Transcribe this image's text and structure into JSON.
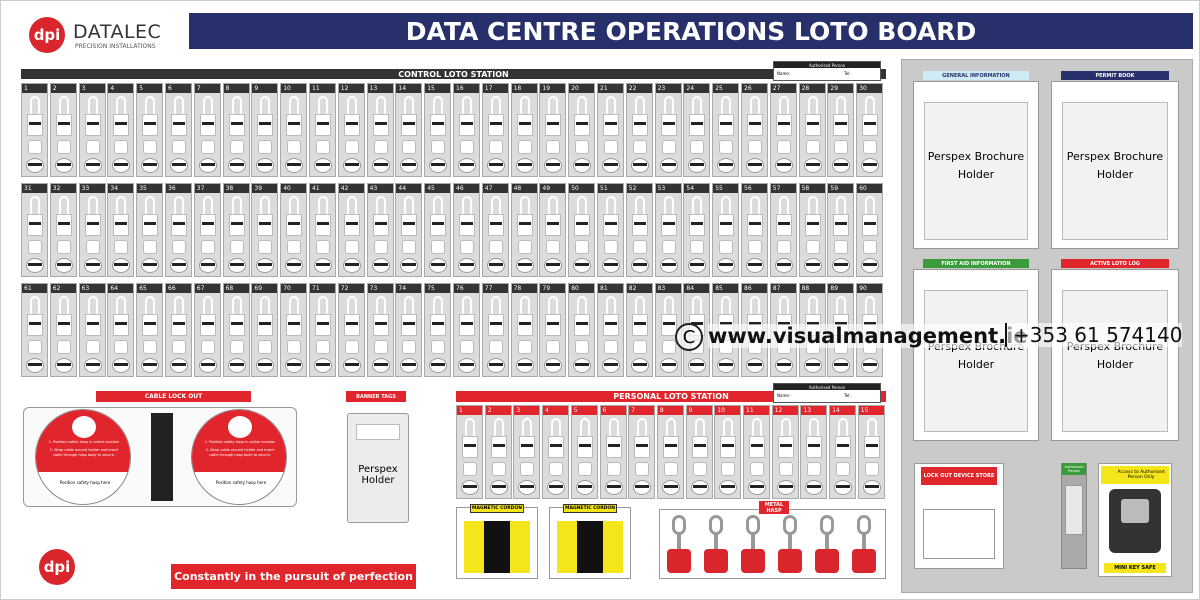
{
  "logo": {
    "mark": "dpi",
    "name": "DATALEC",
    "tagline": "PRECISION INSTALLATIONS"
  },
  "title": "DATA CENTRE OPERATIONS LOTO BOARD",
  "control_station": {
    "title": "CONTROL LOTO STATION",
    "authorised_label": "Authorised Person",
    "name_label": "Name:",
    "tel_label": "Tel:",
    "slots": [
      1,
      2,
      3,
      4,
      5,
      6,
      7,
      8,
      9,
      10,
      11,
      12,
      13,
      14,
      15,
      16,
      17,
      18,
      19,
      20,
      21,
      22,
      23,
      24,
      25,
      26,
      27,
      28,
      29,
      30,
      31,
      32,
      33,
      34,
      35,
      36,
      37,
      38,
      39,
      40,
      41,
      42,
      43,
      44,
      45,
      46,
      47,
      48,
      49,
      50,
      51,
      52,
      53,
      54,
      55,
      56,
      57,
      58,
      59,
      60,
      61,
      62,
      63,
      64,
      65,
      66,
      67,
      68,
      69,
      70,
      71,
      72,
      73,
      74,
      75,
      76,
      77,
      78,
      79,
      80,
      81,
      82,
      83,
      84,
      85,
      86,
      87,
      88,
      89,
      90
    ]
  },
  "cable_lockout": {
    "title": "CABLE LOCK OUT",
    "instructions": [
      "1. Position safety hasp in active location",
      "2. Wrap cable around holder and insert cable through hasp body to secure."
    ],
    "hasp_label": "Position safety hasp here"
  },
  "banner_tags": {
    "title": "BANNER TAGS",
    "holder": "Perspex Holder"
  },
  "personal_station": {
    "title": "PERSONAL LOTO STATION",
    "authorised_label": "Authorised Person",
    "name_label": "Name:",
    "tel_label": "Tel:",
    "slots": [
      1,
      2,
      3,
      4,
      5,
      6,
      7,
      8,
      9,
      10,
      11,
      12,
      13,
      14,
      15
    ]
  },
  "cordons": [
    "MAGNETIC CORDON",
    "MAGNETIC CORDON"
  ],
  "metal_hasp": "METAL HASP",
  "footer": {
    "mark": "dpi",
    "slogan": "Constantly in the pursuit of perfection"
  },
  "holders": [
    {
      "label": "GENERAL INFORMATION",
      "text": "Perspex Brochure Holder"
    },
    {
      "label": "PERMIT BOOK",
      "text": "Perspex Brochure Holder"
    },
    {
      "label": "FIRST AID INFORMATION",
      "text": "Perspex Brochure Holder"
    },
    {
      "label": "ACTIVE LOTO LOG",
      "text": "Perspex Brochure Holder"
    }
  ],
  "device_store": "LOCK OUT DEVICE STORE",
  "authorised_key": "Authorised Person",
  "key_safe": {
    "notice": "Access to Authorised Person Only",
    "label": "MINI KEY SAFE"
  },
  "watermark": {
    "symbol": "C",
    "url": "www.visualmanagement.ie",
    "phone": "+353 61 574140"
  }
}
